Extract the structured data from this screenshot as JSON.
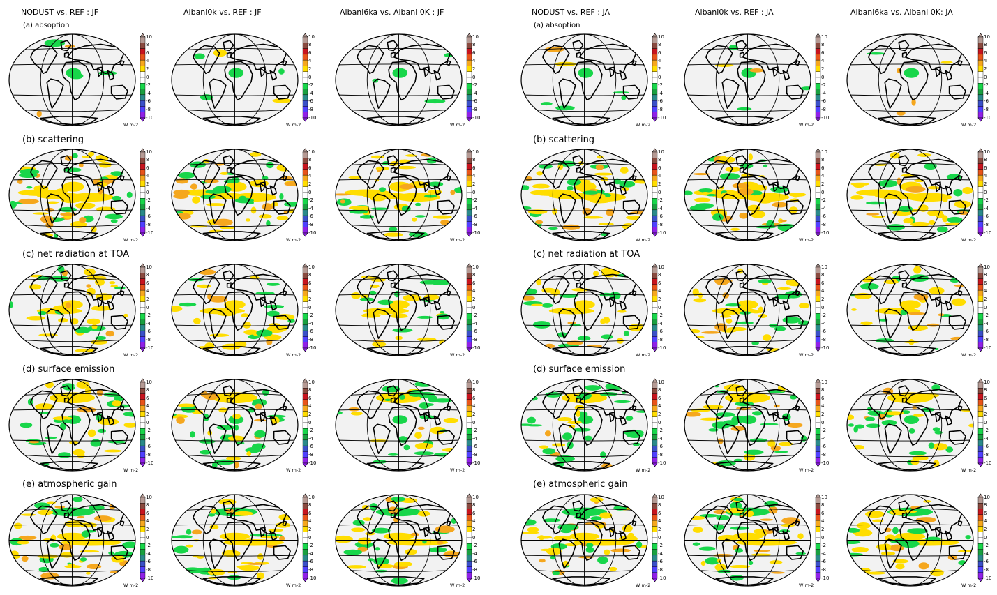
{
  "columns": [
    {
      "title": "NODUST vs. REF : JF"
    },
    {
      "title": "Albani0k vs. REF : JF"
    },
    {
      "title": "Albani6ka vs. Albani 0K : JF"
    },
    {
      "title": "NODUST vs. REF : JA"
    },
    {
      "title": "Albani0k vs. REF : JA"
    },
    {
      "title": "Albani6ka vs. Albani 0K: JA"
    }
  ],
  "rows": [
    {
      "label": "(a) absoption"
    },
    {
      "label": "(b) scattering"
    },
    {
      "label": "(c) net radiation at TOA"
    },
    {
      "label": "(d) surface emission"
    },
    {
      "label": "(e) atmospheric gain"
    }
  ],
  "colorbar": {
    "ticks": [
      "10",
      "8",
      "6",
      "4",
      "2",
      "0",
      "-2",
      "-4",
      "-6",
      "-8",
      "-10"
    ],
    "unit": "W m-2",
    "colors": [
      "#b59a94",
      "#8a4a3f",
      "#c8141e",
      "#e8541a",
      "#f5a71e",
      "#ffdd00",
      "#ffffff",
      "#ffffff",
      "#18d64a",
      "#1aa040",
      "#2a8a8a",
      "#3a50c8",
      "#5040ff",
      "#9020e8"
    ]
  },
  "map": {
    "ocean_color": "#f2f2f2",
    "outline_color": "#000000"
  }
}
